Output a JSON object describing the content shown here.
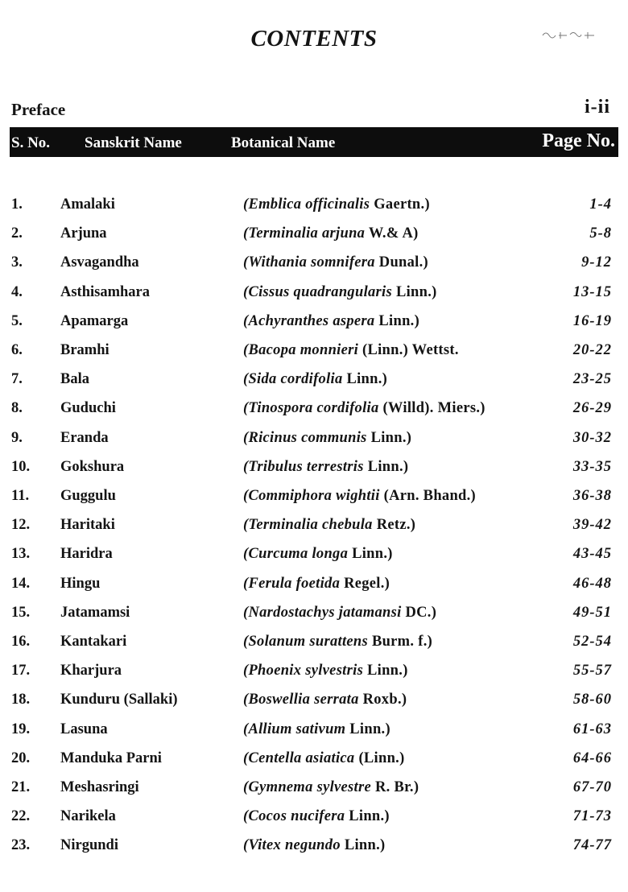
{
  "title": "CONTENTS",
  "preface": {
    "label": "Preface",
    "pages": "i-ii"
  },
  "header": {
    "sno": "S. No.",
    "sanskrit": "Sanskrit Name",
    "botanical": "Botanical Name",
    "page": "Page No."
  },
  "rows": [
    {
      "sno": "1.",
      "sanskrit": "Amalaki",
      "species": "(Emblica officinalis",
      "authority": "Gaertn.)",
      "pages": "1-4"
    },
    {
      "sno": "2.",
      "sanskrit": "Arjuna",
      "species": "(Terminalia arjuna",
      "authority": "W.& A)",
      "pages": "5-8"
    },
    {
      "sno": "3.",
      "sanskrit": "Asvagandha",
      "species": "(Withania somnifera",
      "authority": "Dunal.)",
      "pages": "9-12"
    },
    {
      "sno": "4.",
      "sanskrit": "Asthisamhara",
      "species": "(Cissus quadrangularis",
      "authority": "Linn.)",
      "pages": "13-15"
    },
    {
      "sno": "5.",
      "sanskrit": "Apamarga",
      "species": "(Achyranthes aspera",
      "authority": "Linn.)",
      "pages": "16-19"
    },
    {
      "sno": "6.",
      "sanskrit": "Bramhi",
      "species": "(Bacopa monnieri",
      "authority": "(Linn.) Wettst.",
      "pages": "20-22"
    },
    {
      "sno": "7.",
      "sanskrit": "Bala",
      "species": "(Sida cordifolia",
      "authority": "Linn.)",
      "pages": "23-25"
    },
    {
      "sno": "8.",
      "sanskrit": "Guduchi",
      "species": "(Tinospora cordifolia",
      "authority": "(Willd). Miers.)",
      "pages": "26-29"
    },
    {
      "sno": "9.",
      "sanskrit": "Eranda",
      "species": "(Ricinus communis",
      "authority": "Linn.)",
      "pages": "30-32"
    },
    {
      "sno": "10.",
      "sanskrit": "Gokshura",
      "species": "(Tribulus terrestris",
      "authority": "Linn.)",
      "pages": "33-35"
    },
    {
      "sno": "11.",
      "sanskrit": "Guggulu",
      "species": "(Commiphora wightii",
      "authority": "(Arn. Bhand.)",
      "pages": "36-38"
    },
    {
      "sno": "12.",
      "sanskrit": "Haritaki",
      "species": "(Terminalia chebula",
      "authority": "Retz.)",
      "pages": "39-42"
    },
    {
      "sno": "13.",
      "sanskrit": "Haridra",
      "species": "(Curcuma longa",
      "authority": "Linn.)",
      "pages": "43-45"
    },
    {
      "sno": "14.",
      "sanskrit": "Hingu",
      "species": "(Ferula foetida",
      "authority": "Regel.)",
      "pages": "46-48"
    },
    {
      "sno": "15.",
      "sanskrit": "Jatamamsi",
      "species": "(Nardostachys jatamansi",
      "authority": "DC.)",
      "pages": "49-51"
    },
    {
      "sno": "16.",
      "sanskrit": "Kantakari",
      "species": "(Solanum surattens",
      "authority": "Burm. f.)",
      "pages": "52-54"
    },
    {
      "sno": "17.",
      "sanskrit": "Kharjura",
      "species": "(Phoenix sylvestris",
      "authority": "Linn.)",
      "pages": "55-57"
    },
    {
      "sno": "18.",
      "sanskrit": "Kunduru (Sallaki)",
      "species": "(Boswellia serrata",
      "authority": "Roxb.)",
      "pages": "58-60"
    },
    {
      "sno": "19.",
      "sanskrit": "Lasuna",
      "species": "(Allium sativum",
      "authority": "Linn.)",
      "pages": "61-63"
    },
    {
      "sno": "20.",
      "sanskrit": "Manduka Parni",
      "species": "(Centella asiatica",
      "authority": "(Linn.)",
      "pages": "64-66"
    },
    {
      "sno": "21.",
      "sanskrit": "Meshasringi",
      "species": "(Gymnema sylvestre",
      "authority": "R. Br.)",
      "pages": "67-70"
    },
    {
      "sno": "22.",
      "sanskrit": "Narikela",
      "species": "(Cocos nucifera",
      "authority": "Linn.)",
      "pages": "71-73"
    },
    {
      "sno": "23.",
      "sanskrit": "Nirgundi",
      "species": "(Vitex negundo",
      "authority": "Linn.)",
      "pages": "74-77"
    }
  ]
}
